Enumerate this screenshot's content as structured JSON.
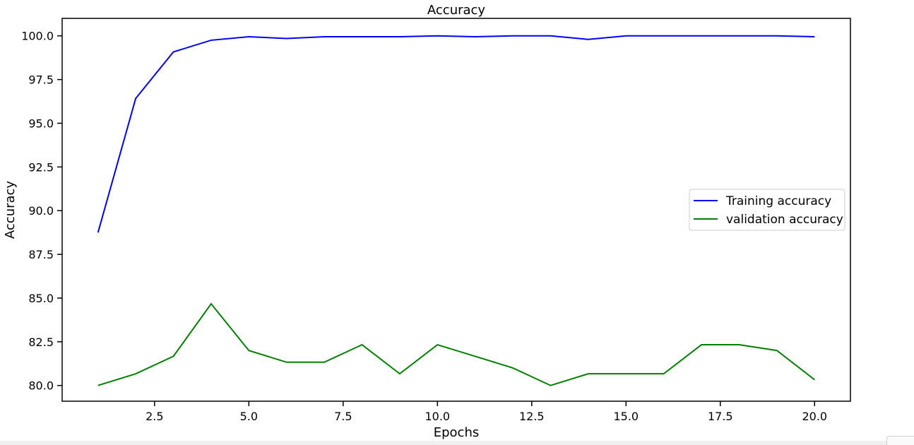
{
  "chart_data": {
    "type": "line",
    "title": "Accuracy",
    "xlabel": "Epochs",
    "ylabel": "Accuracy",
    "xlim": [
      0.05,
      20.95
    ],
    "ylim": [
      79.1,
      101.0
    ],
    "x_ticks": [
      2.5,
      5.0,
      7.5,
      10.0,
      12.5,
      15.0,
      17.5,
      20.0
    ],
    "y_ticks": [
      80.0,
      82.5,
      85.0,
      87.5,
      90.0,
      92.5,
      95.0,
      97.5,
      100.0
    ],
    "x": [
      1,
      2,
      3,
      4,
      5,
      6,
      7,
      8,
      9,
      10,
      11,
      12,
      13,
      14,
      15,
      16,
      17,
      18,
      19,
      20
    ],
    "series": [
      {
        "name": "Training accuracy",
        "color": "#0000ff",
        "values": [
          88.75,
          96.42,
          99.08,
          99.75,
          99.95,
          99.85,
          99.95,
          99.95,
          99.95,
          100.0,
          99.95,
          100.0,
          100.0,
          99.8,
          100.0,
          100.0,
          100.0,
          100.0,
          100.0,
          99.95
        ]
      },
      {
        "name": "validation accuracy",
        "color": "#008000",
        "values": [
          80.0,
          80.67,
          81.67,
          84.67,
          82.0,
          81.33,
          81.33,
          82.33,
          80.67,
          82.33,
          81.67,
          81.0,
          80.0,
          80.67,
          80.67,
          80.67,
          82.33,
          82.33,
          82.0,
          80.33
        ]
      }
    ],
    "grid": false,
    "legend_position": "center-right"
  }
}
